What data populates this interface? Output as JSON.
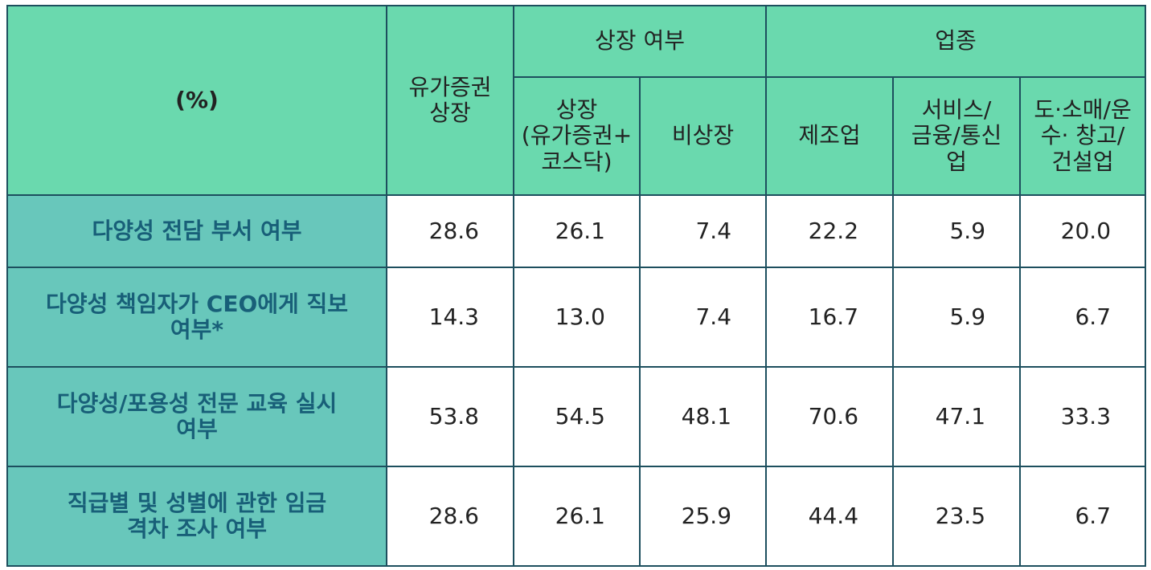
{
  "header": {
    "corner": "(%)",
    "col1": "유가증권\n상장",
    "group_listing": "상장 여부",
    "group_industry": "업종",
    "sub": [
      "상장\n(유가증권+\n코스닥)",
      "비상장",
      "제조업",
      "서비스/\n금융/통신\n업",
      "도·소매/운\n수· 창고/\n건설업"
    ]
  },
  "rows": [
    {
      "label": "다양성 전담 부서 여부",
      "values": [
        "28.6",
        "26.1",
        "7.4",
        "22.2",
        "5.9",
        "20.0"
      ]
    },
    {
      "label": "다양성 책임자가 CEO에게 직보\n여부*",
      "values": [
        "14.3",
        "13.0",
        "7.4",
        "16.7",
        "5.9",
        "6.7"
      ]
    },
    {
      "label": "다양성/포용성 전문 교육 실시\n여부",
      "values": [
        "53.8",
        "54.5",
        "48.1",
        "70.6",
        "47.1",
        "33.3"
      ]
    },
    {
      "label": "직급별 및 성별에 관한 임금\n격차 조사 여부",
      "values": [
        "28.6",
        "26.1",
        "25.9",
        "44.4",
        "23.5",
        "6.7"
      ]
    }
  ]
}
